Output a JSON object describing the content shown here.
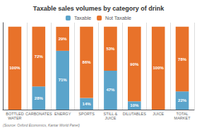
{
  "chart_data": {
    "type": "bar",
    "title": "Taxable sales volumes by category of drink",
    "categories": [
      "BOTTLED\nWATER",
      "CARBONATES",
      "ENERGY",
      "SPORTS",
      "STILL &\nJUICE",
      "DILUTABLES",
      "JUICE",
      "TOTAL\nMARKET"
    ],
    "series": [
      {
        "name": "Taxable",
        "color": "#5ba4cb",
        "values": [
          0,
          28,
          71,
          14,
          47,
          10,
          0,
          22
        ],
        "value_labels": [
          null,
          "28%",
          "71%",
          "14%",
          "47%",
          "10%",
          null,
          "22%"
        ]
      },
      {
        "name": "Not Taxable",
        "color": "#e8722a",
        "values": [
          100,
          72,
          29,
          86,
          53,
          90,
          100,
          78
        ],
        "value_labels": [
          "100%",
          "72%",
          "29%",
          "86%",
          "53%",
          "90%",
          "100%",
          "78%"
        ]
      }
    ],
    "stacked": true,
    "data_labels": true,
    "ylim": [
      0,
      105
    ],
    "yticks": [],
    "tick_labels": "x",
    "grid": true,
    "legend": "top",
    "annotations": [
      "(Source: Oxford Economics, Kantar World Panel)"
    ]
  }
}
